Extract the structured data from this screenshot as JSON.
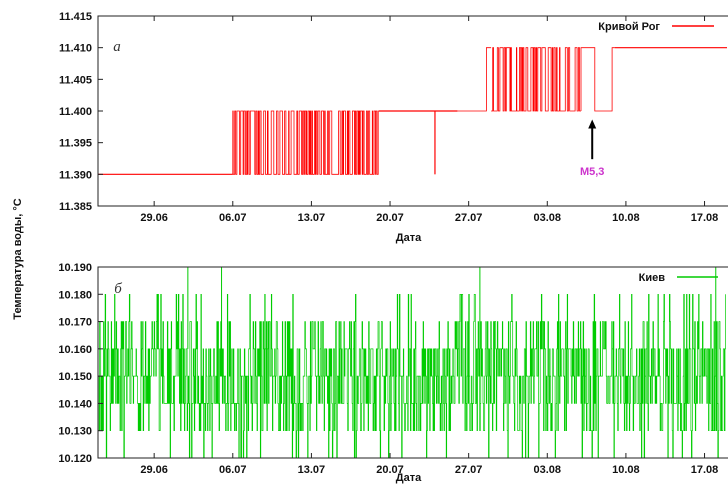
{
  "y_axis_label": "Температура воды, °C",
  "chart_data": [
    {
      "type": "line",
      "panel_label": "а",
      "xlabel": "Дата",
      "x_ticks": [
        "29.06",
        "06.07",
        "13.07",
        "20.07",
        "27.07",
        "03.08",
        "10.08",
        "17.08"
      ],
      "x_range": [
        "24.06",
        "19.08"
      ],
      "y_ticks": [
        "11.385",
        "11.390",
        "11.395",
        "11.400",
        "11.405",
        "11.410",
        "11.415"
      ],
      "ylim": [
        11.385,
        11.415
      ],
      "grid": false,
      "legend_position": "top-right",
      "color": "#ff0000",
      "series": [
        {
          "name": "Кривой Рог",
          "segments": [
            {
              "from": "24.06",
              "to": "06.07",
              "mode": "steady",
              "value": 11.39
            },
            {
              "from": "06.07",
              "to": "19.07",
              "mode": "flicker",
              "low": 11.39,
              "high": 11.4
            },
            {
              "from": "19.07",
              "to": "26.07",
              "mode": "steady",
              "value": 11.4,
              "spikes": [
                {
                  "date": "24.07",
                  "to": 11.39
                }
              ]
            },
            {
              "from": "26.07",
              "to": "29.07",
              "mode": "flicker_sparse",
              "low": 11.4,
              "high": 11.41
            },
            {
              "from": "29.07",
              "to": "06.08",
              "mode": "flicker",
              "low": 11.4,
              "high": 11.41
            },
            {
              "from": "06.08",
              "to": "09.08",
              "mode": "flicker_sparse",
              "low": 11.4,
              "high": 11.41
            },
            {
              "from": "09.08",
              "to": "19.08",
              "mode": "steady",
              "value": 11.41
            }
          ]
        }
      ],
      "annotations": [
        {
          "text": "M5,3",
          "date": "07.08",
          "value": 11.3905,
          "arrow_to_value": 11.3985
        }
      ]
    },
    {
      "type": "line",
      "panel_label": "б",
      "xlabel": "Дата",
      "x_ticks": [
        "29.06",
        "06.07",
        "13.07",
        "20.07",
        "27.07",
        "03.08",
        "10.08",
        "17.08"
      ],
      "x_range": [
        "24.06",
        "19.08"
      ],
      "y_ticks": [
        "10.120",
        "10.130",
        "10.140",
        "10.150",
        "10.160",
        "10.170",
        "10.180",
        "10.190"
      ],
      "ylim": [
        10.12,
        10.19
      ],
      "grid": false,
      "legend_position": "top-right",
      "color": "#00cc00",
      "series": [
        {
          "name": "Киев",
          "mode": "noise",
          "core_range": [
            10.14,
            10.16
          ],
          "dense_range": [
            10.13,
            10.17
          ],
          "sparse_range": [
            10.12,
            10.18
          ],
          "extremes": [
            {
              "date": "02.07",
              "value": 10.19
            },
            {
              "date": "05.07",
              "value": 10.19
            },
            {
              "date": "28.07",
              "value": 10.19
            },
            {
              "date": "18.08",
              "value": 10.19
            }
          ]
        }
      ]
    }
  ]
}
